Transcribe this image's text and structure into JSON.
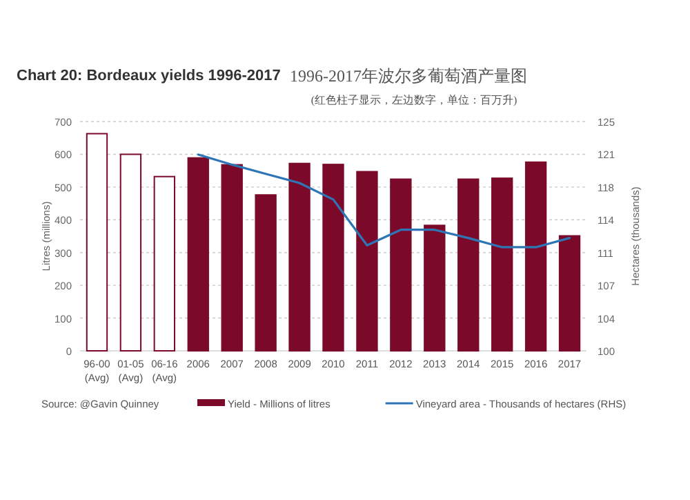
{
  "chart_data": {
    "type": "bar",
    "title": "Chart 20: Bordeaux yields 1996-2017",
    "subtitle": "1996-2017年波尔多葡萄酒产量图",
    "annotations": [
      "(红色柱子显示，左边数字，单位：百万升)",
      "Source: @Gavin Quinney"
    ],
    "categories": [
      "96-00\n(Avg)",
      "01-05\n(Avg)",
      "06-16\n(Avg)",
      "2006",
      "2007",
      "2008",
      "2009",
      "2010",
      "2011",
      "2012",
      "2013",
      "2014",
      "2015",
      "2016",
      "2017"
    ],
    "ylabel": "Litres (millions)",
    "y2label": "Hectares (thousands)",
    "ylim": [
      0,
      700
    ],
    "yticks": [
      0,
      100,
      200,
      300,
      400,
      500,
      600,
      700
    ],
    "y2lim": [
      100,
      125
    ],
    "y2ticks": [
      100,
      {
        "value": 103.571,
        "label": "104"
      },
      {
        "value": 107.143,
        "label": "107"
      },
      {
        "value": 110.714,
        "label": "111"
      },
      {
        "value": 114.286,
        "label": "114"
      },
      {
        "value": 117.857,
        "label": "118"
      },
      {
        "value": 121.429,
        "label": "121"
      },
      125
    ],
    "grid": "y",
    "legend": "bottom",
    "series": [
      {
        "name": "Yield - Millions of litres",
        "color": "#7b0a2a",
        "colors": [
          "#ffffff",
          "#ffffff",
          "#ffffff",
          "#7b0a2a",
          "#7b0a2a",
          "#7b0a2a",
          "#7b0a2a",
          "#7b0a2a",
          "#7b0a2a",
          "#7b0a2a",
          "#7b0a2a",
          "#7b0a2a",
          "#7b0a2a",
          "#7b0a2a",
          "#7b0a2a"
        ],
        "values": [
          663,
          600,
          532,
          589,
          568,
          476,
          572,
          569,
          547,
          524,
          383,
          524,
          527,
          576,
          351
        ]
      },
      {
        "name": "Vineyard area - Thousands of hectares (RHS)",
        "type": "line",
        "axis": "y2",
        "color": "#2e75b6",
        "values": [
          null,
          null,
          null,
          121.4,
          120.3,
          119.3,
          118.3,
          116.5,
          111.5,
          113.2,
          113.2,
          112.3,
          111.3,
          111.3,
          112.3
        ]
      }
    ]
  }
}
